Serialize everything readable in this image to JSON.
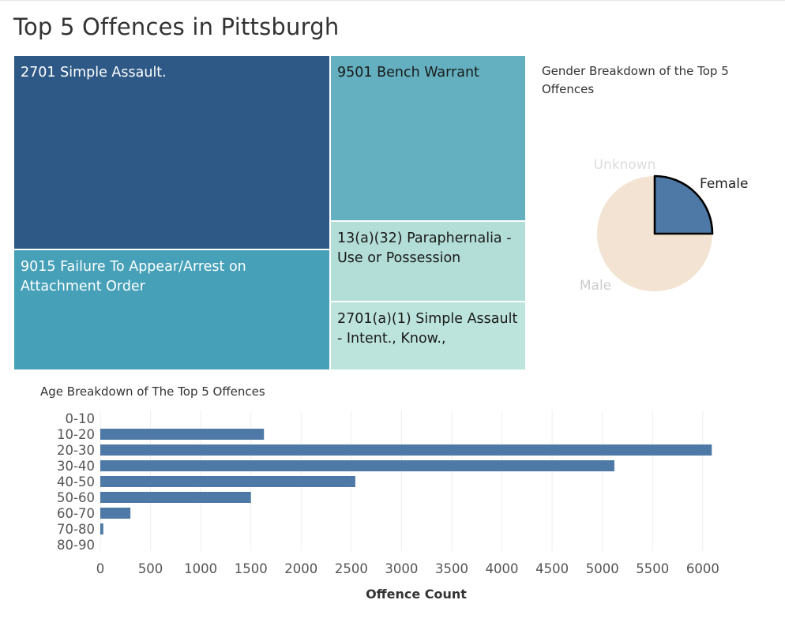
{
  "page": {
    "title": "Top 5 Offences in Pittsburgh"
  },
  "treemap": {
    "items": [
      {
        "label": "2701 Simple Assault.",
        "color": "#2e5986",
        "text_color": "#ffffff"
      },
      {
        "label": "9015 Failure To Appear/Arrest on Attachment Order",
        "color": "#45a0b8",
        "text_color": "#ffffff"
      },
      {
        "label": "9501 Bench Warrant",
        "color": "#64b0c0",
        "text_color": "#1a1a1a"
      },
      {
        "label": "13(a)(32) Paraphernalia - Use or Possession",
        "color": "#b3ddd7",
        "text_color": "#1a1a1a"
      },
      {
        "label": "2701(a)(1) Simple Assault - Intent., Know.,",
        "color": "#bce4dc",
        "text_color": "#1a1a1a"
      }
    ]
  },
  "gender_chart": {
    "title": "Gender Breakdown of the Top 5 Offences",
    "slices": [
      {
        "label": "Unknown",
        "share": 0.0,
        "color": "#f3e3d2",
        "label_color": "#dddddd"
      },
      {
        "label": "Female",
        "share": 0.25,
        "color": "#4e79a7",
        "label_color": "#222222",
        "highlighted": true
      },
      {
        "label": "Male",
        "share": 0.75,
        "color": "#f3e3d2",
        "label_color": "#cccccc"
      }
    ]
  },
  "chart_data": {
    "type": "bar",
    "orientation": "horizontal",
    "title": "Age Breakdown of The Top 5 Offences",
    "xlabel": "Offence Count",
    "ylabel": "",
    "categories": [
      "0-10",
      "10-20",
      "20-30",
      "30-40",
      "40-50",
      "50-60",
      "60-70",
      "70-80",
      "80-90"
    ],
    "values": [
      0,
      1630,
      6090,
      5120,
      2540,
      1500,
      300,
      30,
      0
    ],
    "xlim": [
      0,
      6300
    ],
    "x_ticks": [
      0,
      500,
      1000,
      1500,
      2000,
      2500,
      3000,
      3500,
      4000,
      4500,
      5000,
      5500,
      6000
    ],
    "grid": "vertical",
    "bar_color": "#4e79a7"
  }
}
